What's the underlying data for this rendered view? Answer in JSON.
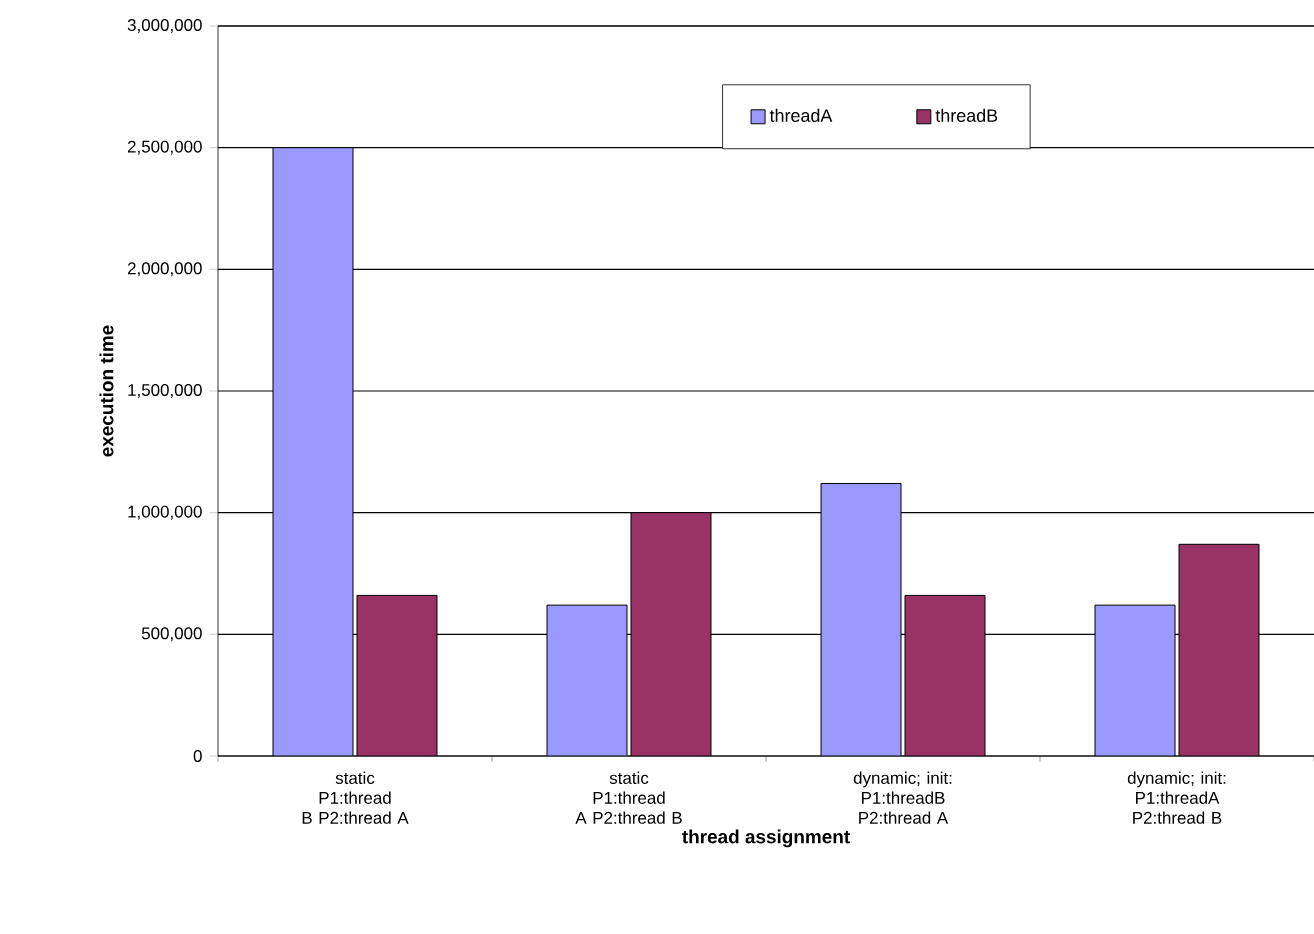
{
  "chart_data": {
    "type": "bar",
    "xlabel": "thread assignment",
    "ylabel": "execution time",
    "categories": [
      "static P1:thread B P2:thread A",
      "static P1:thread A P2:thread B",
      "dynamic; init: P1:threadB P2:thread A",
      "dynamic; init: P1:threadA P2:thread B"
    ],
    "series": [
      {
        "name": "threadA",
        "color": "#9999ff",
        "values": [
          2500000,
          620000,
          1120000,
          620000
        ]
      },
      {
        "name": "threadB",
        "color": "#993366",
        "values": [
          660000,
          1000000,
          660000,
          870000
        ]
      }
    ],
    "ylim": [
      0,
      3000000
    ],
    "yticks": [
      {
        "value": 0,
        "label": "0"
      },
      {
        "value": 500000,
        "label": "500,000"
      },
      {
        "value": 1000000,
        "label": "1,000,000"
      },
      {
        "value": 1500000,
        "label": "1,500,000"
      },
      {
        "value": 2000000,
        "label": "2,000,000"
      },
      {
        "value": 2500000,
        "label": "2,500,000"
      },
      {
        "value": 3000000,
        "label": "3,000,000"
      }
    ],
    "grid": "y",
    "legend": "top right"
  }
}
